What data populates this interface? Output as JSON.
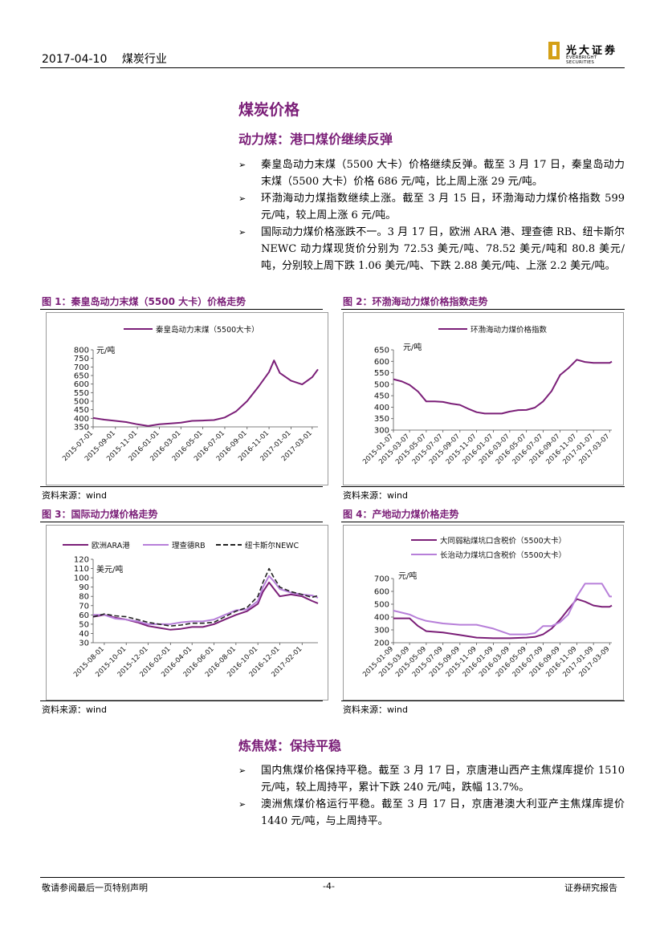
{
  "header": {
    "date": "2017-04-10",
    "industry": "煤炭行业"
  },
  "logo": {
    "name": "光大证券",
    "en": "EVERBRIGHT SECURITIES"
  },
  "section_title": "煤炭价格",
  "thermal": {
    "title": "动力煤：港口煤价继续反弹",
    "bullets": [
      "秦皇岛动力末煤（5500 大卡）价格继续反弹。截至 3 月 17 日，秦皇岛动力末煤（5500 大卡）价格 686 元/吨，比上周上涨 29 元/吨。",
      "环渤海动力煤指数继续上涨。截至 3 月 15 日，环渤海动力煤价格指数 599 元/吨，较上周上涨 6 元/吨。",
      "国际动力煤价格涨跌不一。3 月 17 日，欧洲 ARA 港、理查德 RB、纽卡斯尔 NEWC 动力煤现货价分别为 72.53 美元/吨、78.52 美元/吨和 80.8 美元/吨，分别较上周下跌 1.06 美元/吨、下跌 2.88 美元/吨、上涨 2.2 美元/吨。"
    ]
  },
  "figures": [
    {
      "title": "图 1：秦皇岛动力末煤（5500 大卡）价格走势",
      "source": "资料来源：wind"
    },
    {
      "title": "图 2：环渤海动力煤价格指数走势",
      "source": "资料来源：wind"
    },
    {
      "title": "图 3：国际动力煤价格走势",
      "source": "资料来源：wind"
    },
    {
      "title": "图 4：产地动力煤价格走势",
      "source": "资料来源：wind"
    }
  ],
  "coking": {
    "title": "炼焦煤：保持平稳",
    "bullets": [
      "国内焦煤价格保持平稳。截至 3 月 17 日，京唐港山西产主焦煤库提价 1510 元/吨，较上周持平，累计下跌 240 元/吨，跌幅 13.7%。",
      "澳洲焦煤价格运行平稳。截至 3 月 17 日，京唐港澳大利亚产主焦煤库提价 1440 元/吨，与上周持平。"
    ]
  },
  "footer": {
    "left": "敬请参阅最后一页特别声明",
    "page": "-4-",
    "right": "证券研究报告"
  },
  "colors": {
    "purple": "#7b1f78",
    "light_purple": "#b77fd9",
    "black": "#222222"
  },
  "chart_data": [
    {
      "id": "fig1",
      "type": "line",
      "ylabel": "元/吨",
      "ylim": [
        350,
        800
      ],
      "yticks": [
        350,
        400,
        450,
        500,
        550,
        600,
        650,
        700,
        750,
        800
      ],
      "xtick_labels": [
        "2015-07-01",
        "2015-09-01",
        "2015-11-01",
        "2016-01-01",
        "2016-03-01",
        "2016-05-01",
        "2016-07-01",
        "2016-09-01",
        "2016-11-01",
        "2017-01-01",
        "2017-03-01"
      ],
      "x": [
        "2015-07-01",
        "2015-08-01",
        "2015-09-01",
        "2015-10-01",
        "2015-11-01",
        "2015-12-01",
        "2016-01-01",
        "2016-02-01",
        "2016-03-01",
        "2016-04-01",
        "2016-05-01",
        "2016-06-01",
        "2016-07-01",
        "2016-08-01",
        "2016-09-01",
        "2016-10-01",
        "2016-11-01",
        "2016-11-15",
        "2016-12-01",
        "2017-01-01",
        "2017-02-01",
        "2017-03-01",
        "2017-03-17"
      ],
      "series": [
        {
          "name": "秦皇岛动力末煤（5500大卡）",
          "color": "#7b1f78",
          "values": [
            402,
            392,
            385,
            378,
            365,
            355,
            365,
            370,
            375,
            385,
            387,
            390,
            405,
            440,
            500,
            580,
            670,
            738,
            665,
            620,
            598,
            640,
            686
          ]
        }
      ]
    },
    {
      "id": "fig2",
      "type": "line",
      "ylabel": "元/吨",
      "ylim": [
        300,
        650
      ],
      "yticks": [
        300,
        350,
        400,
        450,
        500,
        550,
        600,
        650
      ],
      "xtick_labels": [
        "2015-01-07",
        "2015-03-07",
        "2015-05-07",
        "2015-07-07",
        "2015-09-07",
        "2015-11-07",
        "2016-01-07",
        "2016-03-07",
        "2016-05-07",
        "2016-07-07",
        "2016-09-07",
        "2016-11-07",
        "2017-01-07",
        "2017-03-07"
      ],
      "x": [
        "2015-01-07",
        "2015-02-07",
        "2015-03-07",
        "2015-04-07",
        "2015-05-07",
        "2015-06-07",
        "2015-07-07",
        "2015-08-07",
        "2015-09-07",
        "2015-10-07",
        "2015-11-07",
        "2015-12-07",
        "2016-01-07",
        "2016-02-07",
        "2016-03-07",
        "2016-04-07",
        "2016-05-07",
        "2016-06-07",
        "2016-07-07",
        "2016-08-07",
        "2016-09-07",
        "2016-10-07",
        "2016-11-07",
        "2016-12-07",
        "2017-01-07",
        "2017-02-07",
        "2017-03-07",
        "2017-03-15"
      ],
      "series": [
        {
          "name": "环渤海动力煤价格指数",
          "color": "#7b1f78",
          "values": [
            522,
            512,
            497,
            468,
            425,
            425,
            423,
            415,
            410,
            393,
            378,
            372,
            372,
            372,
            381,
            387,
            388,
            398,
            425,
            470,
            540,
            570,
            607,
            597,
            593,
            593,
            593,
            599
          ]
        }
      ]
    },
    {
      "id": "fig3",
      "type": "line",
      "ylabel": "美元/吨",
      "ylim": [
        30,
        120
      ],
      "yticks": [
        30,
        40,
        50,
        60,
        70,
        80,
        90,
        100,
        110,
        120
      ],
      "xtick_labels": [
        "2015-08-01",
        "2015-10-01",
        "2015-12-01",
        "2016-02-01",
        "2016-04-01",
        "2016-06-01",
        "2016-08-01",
        "2016-10-01",
        "2016-12-01",
        "2017-02-01"
      ],
      "x": [
        "2015-07-01",
        "2015-08-01",
        "2015-09-01",
        "2015-10-01",
        "2015-11-01",
        "2015-12-01",
        "2016-01-01",
        "2016-02-01",
        "2016-03-01",
        "2016-04-01",
        "2016-05-01",
        "2016-06-01",
        "2016-07-01",
        "2016-08-01",
        "2016-09-01",
        "2016-10-01",
        "2016-10-15",
        "2016-11-01",
        "2016-11-15",
        "2016-12-01",
        "2017-01-01",
        "2017-02-01",
        "2017-03-01",
        "2017-03-17"
      ],
      "series": [
        {
          "name": "欧洲ARA港",
          "color": "#7b1f78",
          "values": [
            58,
            60,
            57,
            55,
            52,
            48,
            46,
            44,
            45,
            47,
            47,
            50,
            55,
            60,
            64,
            72,
            85,
            95,
            88,
            80,
            82,
            80,
            75,
            72.53
          ]
        },
        {
          "name": "理查德RB",
          "color": "#b77fd9",
          "values": [
            60,
            60,
            56,
            55,
            53,
            50,
            50,
            50,
            52,
            53,
            53,
            55,
            60,
            65,
            66,
            75,
            90,
            102,
            96,
            88,
            84,
            82,
            81,
            78.52
          ]
        },
        {
          "name": "纽卡斯尔NEWC",
          "color": "#222222",
          "values": [
            58,
            61,
            59,
            58,
            55,
            52,
            50,
            48,
            49,
            51,
            51,
            52,
            58,
            64,
            68,
            80,
            95,
            110,
            100,
            90,
            85,
            82,
            79,
            80.8
          ]
        }
      ]
    },
    {
      "id": "fig4",
      "type": "line",
      "ylabel": "元/吨",
      "ylim": [
        200,
        700
      ],
      "yticks": [
        200,
        300,
        400,
        500,
        600,
        700
      ],
      "xtick_labels": [
        "2015-01-09",
        "2015-03-09",
        "2015-05-09",
        "2015-07-09",
        "2015-09-09",
        "2015-11-09",
        "2016-01-09",
        "2016-03-09",
        "2016-05-09",
        "2016-07-09",
        "2016-09-09",
        "2016-11-09",
        "2017-01-09",
        "2017-03-09"
      ],
      "x": [
        "2015-01-09",
        "2015-03-09",
        "2015-04-09",
        "2015-05-09",
        "2015-07-09",
        "2015-09-09",
        "2015-11-09",
        "2016-01-09",
        "2016-03-09",
        "2016-05-09",
        "2016-06-09",
        "2016-07-09",
        "2016-08-09",
        "2016-09-09",
        "2016-10-09",
        "2016-11-09",
        "2016-12-09",
        "2017-01-09",
        "2017-02-09",
        "2017-03-09",
        "2017-03-17"
      ],
      "series": [
        {
          "name": "大同弱粘煤坑口含税价（5500大卡）",
          "color": "#7b1f78",
          "values": [
            390,
            390,
            330,
            290,
            280,
            260,
            240,
            235,
            235,
            240,
            245,
            265,
            310,
            380,
            460,
            540,
            520,
            490,
            480,
            480,
            490
          ]
        },
        {
          "name": "长治动力煤坑口含税价（5500大卡）",
          "color": "#b77fd9",
          "values": [
            450,
            420,
            390,
            370,
            350,
            340,
            340,
            310,
            265,
            265,
            275,
            330,
            330,
            360,
            420,
            560,
            660,
            660,
            660,
            560,
            560
          ]
        }
      ]
    }
  ]
}
